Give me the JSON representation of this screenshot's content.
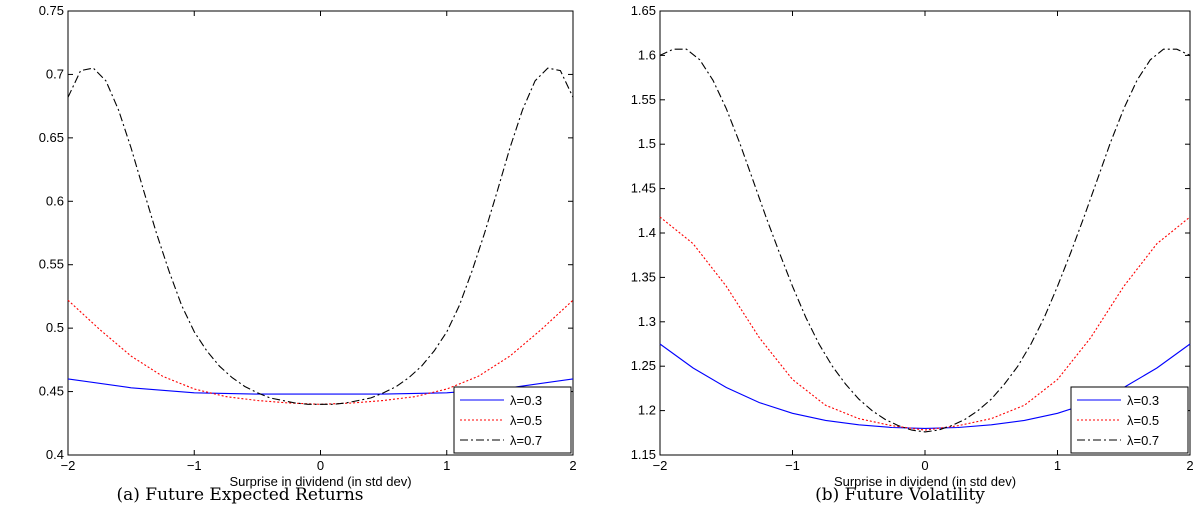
{
  "chart_data": [
    {
      "type": "line",
      "caption": "(a)  Future Expected Returns",
      "xlabel": "Surprise in dividend (in std dev)",
      "ylabel": "",
      "xlim": [
        -2,
        2
      ],
      "ylim": [
        0.4,
        0.75
      ],
      "xticks": [
        -2,
        -1,
        0,
        1,
        2
      ],
      "xtick_labels": [
        "−2",
        "−1",
        "0",
        "1",
        "2"
      ],
      "yticks": [
        0.4,
        0.45,
        0.5,
        0.55,
        0.6,
        0.65,
        0.7,
        0.75
      ],
      "ytick_labels": [
        "0.4",
        "0.45",
        "0.5",
        "0.55",
        "0.6",
        "0.65",
        "0.7",
        "0.75"
      ],
      "grid": false,
      "legend_position": "bottom-right",
      "series": [
        {
          "name": "λ=0.3",
          "color": "#0000ff",
          "style": "solid",
          "x": [
            -2,
            -1.5,
            -1,
            -0.5,
            0,
            0.5,
            1,
            1.5,
            2
          ],
          "y": [
            0.46,
            0.453,
            0.449,
            0.448,
            0.448,
            0.448,
            0.449,
            0.453,
            0.46
          ]
        },
        {
          "name": "λ=0.5",
          "color": "#ff0000",
          "style": "dotted",
          "x": [
            -2,
            -1.75,
            -1.5,
            -1.25,
            -1,
            -0.75,
            -0.5,
            -0.25,
            0,
            0.25,
            0.5,
            0.75,
            1,
            1.25,
            1.5,
            1.75,
            2
          ],
          "y": [
            0.522,
            0.499,
            0.478,
            0.462,
            0.452,
            0.446,
            0.443,
            0.441,
            0.44,
            0.441,
            0.443,
            0.446,
            0.452,
            0.462,
            0.478,
            0.499,
            0.522
          ]
        },
        {
          "name": "λ=0.7",
          "color": "#000000",
          "style": "dashdot",
          "x": [
            -2,
            -1.9,
            -1.8,
            -1.7,
            -1.6,
            -1.5,
            -1.4,
            -1.3,
            -1.2,
            -1.1,
            -1,
            -0.9,
            -0.8,
            -0.7,
            -0.6,
            -0.5,
            -0.4,
            -0.3,
            -0.2,
            -0.1,
            0,
            0.1,
            0.2,
            0.3,
            0.4,
            0.5,
            0.6,
            0.7,
            0.8,
            0.9,
            1,
            1.1,
            1.2,
            1.3,
            1.4,
            1.5,
            1.6,
            1.7,
            1.8,
            1.9,
            2
          ],
          "y": [
            0.682,
            0.703,
            0.705,
            0.695,
            0.672,
            0.642,
            0.608,
            0.575,
            0.545,
            0.518,
            0.497,
            0.482,
            0.47,
            0.461,
            0.454,
            0.449,
            0.445,
            0.443,
            0.441,
            0.44,
            0.44,
            0.44,
            0.441,
            0.443,
            0.445,
            0.449,
            0.454,
            0.461,
            0.47,
            0.482,
            0.497,
            0.518,
            0.545,
            0.575,
            0.608,
            0.642,
            0.672,
            0.695,
            0.705,
            0.703,
            0.682
          ]
        }
      ]
    },
    {
      "type": "line",
      "caption": "(b)  Future Volatility",
      "xlabel": "Surprise in dividend (in std dev)",
      "ylabel": "",
      "xlim": [
        -2,
        2
      ],
      "ylim": [
        1.15,
        1.65
      ],
      "xticks": [
        -2,
        -1,
        0,
        1,
        2
      ],
      "xtick_labels": [
        "−2",
        "−1",
        "0",
        "1",
        "2"
      ],
      "yticks": [
        1.15,
        1.2,
        1.25,
        1.3,
        1.35,
        1.4,
        1.45,
        1.5,
        1.55,
        1.6,
        1.65
      ],
      "ytick_labels": [
        "1.15",
        "1.2",
        "1.25",
        "1.3",
        "1.35",
        "1.4",
        "1.45",
        "1.5",
        "1.55",
        "1.6",
        "1.65"
      ],
      "grid": false,
      "legend_position": "bottom-right",
      "series": [
        {
          "name": "λ=0.3",
          "color": "#0000ff",
          "style": "solid",
          "x": [
            -2,
            -1.75,
            -1.5,
            -1.25,
            -1,
            -0.75,
            -0.5,
            -0.25,
            0,
            0.25,
            0.5,
            0.75,
            1,
            1.25,
            1.5,
            1.75,
            2
          ],
          "y": [
            1.275,
            1.248,
            1.226,
            1.209,
            1.197,
            1.189,
            1.184,
            1.181,
            1.18,
            1.181,
            1.184,
            1.189,
            1.197,
            1.209,
            1.226,
            1.248,
            1.275
          ]
        },
        {
          "name": "λ=0.5",
          "color": "#ff0000",
          "style": "dotted",
          "x": [
            -2,
            -1.75,
            -1.5,
            -1.25,
            -1,
            -0.75,
            -0.5,
            -0.25,
            0,
            0.25,
            0.5,
            0.75,
            1,
            1.25,
            1.5,
            1.75,
            2
          ],
          "y": [
            1.418,
            1.388,
            1.34,
            1.282,
            1.235,
            1.206,
            1.191,
            1.183,
            1.178,
            1.183,
            1.191,
            1.206,
            1.235,
            1.282,
            1.34,
            1.388,
            1.418
          ]
        },
        {
          "name": "λ=0.7",
          "color": "#000000",
          "style": "dashdot",
          "x": [
            -2,
            -1.9,
            -1.8,
            -1.7,
            -1.6,
            -1.5,
            -1.4,
            -1.3,
            -1.2,
            -1.1,
            -1,
            -0.9,
            -0.8,
            -0.7,
            -0.6,
            -0.5,
            -0.4,
            -0.3,
            -0.2,
            -0.1,
            0,
            0.1,
            0.2,
            0.3,
            0.4,
            0.5,
            0.6,
            0.7,
            0.8,
            0.9,
            1,
            1.1,
            1.2,
            1.3,
            1.4,
            1.5,
            1.6,
            1.7,
            1.8,
            1.9,
            2
          ],
          "y": [
            1.6,
            1.607,
            1.607,
            1.595,
            1.572,
            1.54,
            1.502,
            1.46,
            1.418,
            1.378,
            1.34,
            1.305,
            1.275,
            1.25,
            1.23,
            1.213,
            1.2,
            1.19,
            1.183,
            1.178,
            1.176,
            1.178,
            1.183,
            1.19,
            1.2,
            1.213,
            1.23,
            1.25,
            1.275,
            1.305,
            1.34,
            1.378,
            1.418,
            1.46,
            1.502,
            1.54,
            1.572,
            1.595,
            1.607,
            1.607,
            1.6
          ]
        }
      ]
    }
  ]
}
